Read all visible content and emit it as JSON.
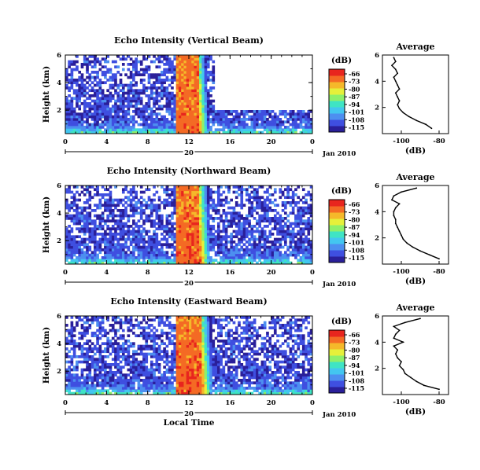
{
  "chart_data": [
    {
      "type": "heatmap",
      "title": "Echo Intensity (Vertical Beam)",
      "ylabel": "Height (km)",
      "x_ticks": [
        "0",
        "4",
        "8",
        "12",
        "16",
        "20",
        "0"
      ],
      "y_ticks": [
        "6",
        "4",
        "2"
      ],
      "date_label": "20",
      "month_label": "Jan 2010",
      "xlim": [
        0,
        24
      ],
      "ylim": [
        0.3,
        6
      ],
      "colorbar": {
        "unit": "(dB)",
        "ticks": [
          "-66",
          "-73",
          "-80",
          "-87",
          "-94",
          "-101",
          "-108",
          "-115"
        ]
      },
      "events": [
        {
          "name": "precipitation",
          "x_start": 10.8,
          "x_end": 13.8,
          "dB_max": -66
        },
        {
          "name": "data gap",
          "x_start": 14.5,
          "x_end": 24,
          "y_above": 2.0
        }
      ],
      "profile": {
        "title": "Average",
        "xlabel": "(dB)",
        "x_ticks": [
          "-100",
          "-80"
        ],
        "y_ticks": [
          "6",
          "4",
          "2"
        ],
        "height": [
          0.4,
          0.7,
          1.0,
          1.3,
          1.6,
          1.9,
          2.2,
          2.5,
          2.8,
          3.1,
          3.4,
          3.7,
          4.0,
          4.3,
          4.6,
          4.9,
          5.2,
          5.5,
          5.8
        ],
        "dB": [
          -84,
          -87,
          -92,
          -96,
          -99,
          -101,
          -102,
          -101,
          -102,
          -103,
          -101,
          -102,
          -103,
          -104,
          -102,
          -103,
          -105,
          -103,
          -104
        ]
      }
    },
    {
      "type": "heatmap",
      "title": "Echo Intensity (Northward Beam)",
      "ylabel": "Height (km)",
      "x_ticks": [
        "0",
        "4",
        "8",
        "12",
        "16",
        "20",
        "0"
      ],
      "y_ticks": [
        "6",
        "4",
        "2"
      ],
      "date_label": "20",
      "month_label": "Jan 2010",
      "xlim": [
        0,
        24
      ],
      "ylim": [
        0.3,
        6
      ],
      "colorbar": {
        "unit": "(dB)",
        "ticks": [
          "-66",
          "-73",
          "-80",
          "-87",
          "-94",
          "-101",
          "-108",
          "-115"
        ]
      },
      "events": [
        {
          "name": "precipitation",
          "x_start": 10.8,
          "x_end": 14.0,
          "dB_max": -66
        }
      ],
      "profile": {
        "title": "Average",
        "xlabel": "(dB)",
        "x_ticks": [
          "-100",
          "-80"
        ],
        "y_ticks": [
          "6",
          "4",
          "2"
        ],
        "height": [
          0.4,
          0.7,
          1.0,
          1.3,
          1.6,
          1.9,
          2.2,
          2.5,
          2.8,
          3.1,
          3.4,
          3.7,
          4.0,
          4.3,
          4.6,
          4.9,
          5.2,
          5.5,
          5.8
        ],
        "dB": [
          -80,
          -85,
          -90,
          -94,
          -97,
          -99,
          -100,
          -101,
          -102,
          -103,
          -103,
          -104,
          -104,
          -103,
          -101,
          -105,
          -104,
          -100,
          -92
        ]
      }
    },
    {
      "type": "heatmap",
      "title": "Echo Intensity (Eastward Beam)",
      "ylabel": "Height (km)",
      "xlabel": "Local Time",
      "x_ticks": [
        "0",
        "4",
        "8",
        "12",
        "16",
        "20",
        "0"
      ],
      "y_ticks": [
        "6",
        "4",
        "2"
      ],
      "date_label": "20",
      "month_label": "Jan 2010",
      "xlim": [
        0,
        24
      ],
      "ylim": [
        0.3,
        6
      ],
      "colorbar": {
        "unit": "(dB)",
        "ticks": [
          "-66",
          "-73",
          "-80",
          "-87",
          "-94",
          "-101",
          "-108",
          "-115"
        ]
      },
      "events": [
        {
          "name": "precipitation",
          "x_start": 10.8,
          "x_end": 14.2,
          "dB_max": -66
        }
      ],
      "profile": {
        "title": "Average",
        "xlabel": "(dB)",
        "x_ticks": [
          "-100",
          "-80"
        ],
        "y_ticks": [
          "6",
          "4",
          "2"
        ],
        "height": [
          0.4,
          0.7,
          1.0,
          1.3,
          1.6,
          1.9,
          2.2,
          2.5,
          2.8,
          3.1,
          3.4,
          3.7,
          4.0,
          4.3,
          4.6,
          4.9,
          5.2,
          5.5,
          5.8
        ],
        "dB": [
          -80,
          -88,
          -92,
          -95,
          -98,
          -99,
          -101,
          -100,
          -102,
          -103,
          -102,
          -104,
          -99,
          -104,
          -103,
          -101,
          -104,
          -98,
          -90
        ]
      }
    }
  ],
  "colors": {
    "scale": [
      "#2a1f9a",
      "#3f4fe0",
      "#4d8ff0",
      "#43c6f0",
      "#3fe4c4",
      "#8ef06a",
      "#e6f03a",
      "#f5b82a",
      "#f46a24",
      "#e8251e"
    ],
    "axis": "#000000",
    "background": "#ffffff"
  }
}
